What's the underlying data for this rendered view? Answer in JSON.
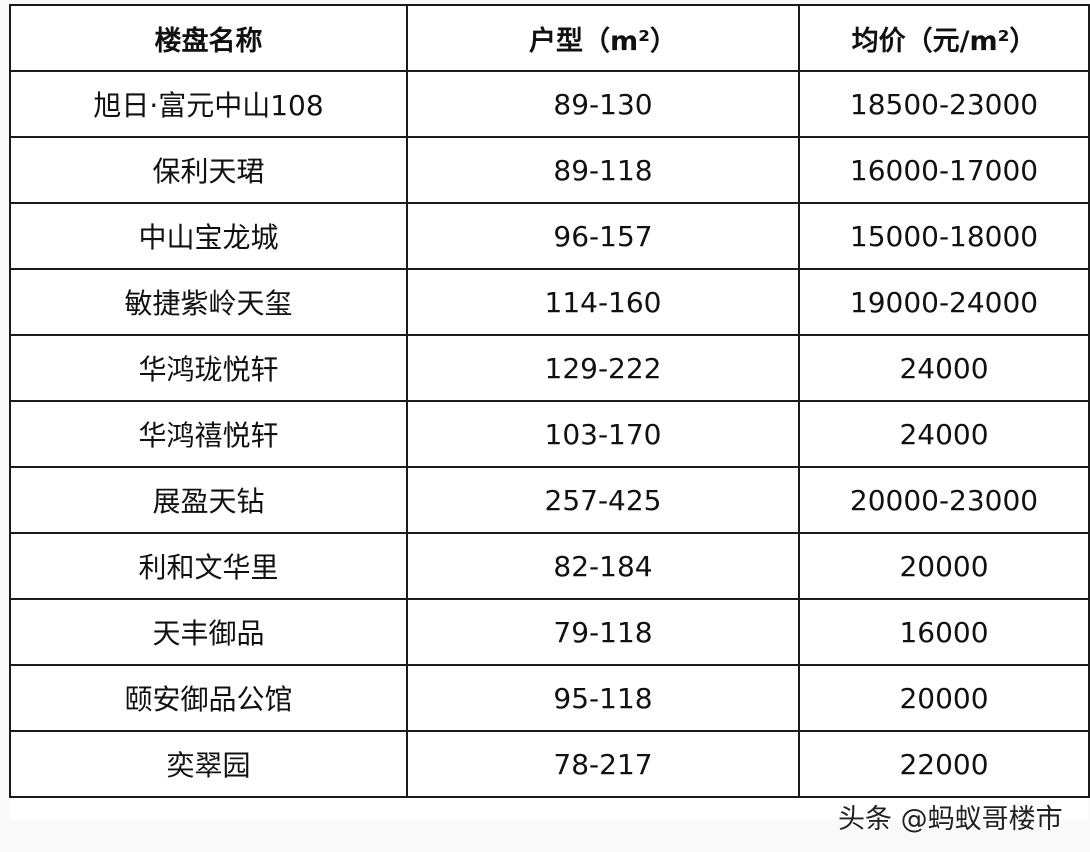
{
  "table": {
    "headers": [
      "楼盘名称",
      "户型（m²）",
      "均价（元/m²）"
    ],
    "rows": [
      [
        "旭日·富元中山108",
        "89-130",
        "18500-23000"
      ],
      [
        "保利天珺",
        "89-118",
        "16000-17000"
      ],
      [
        "中山宝龙城",
        "96-157",
        "15000-18000"
      ],
      [
        "敏捷紫岭天玺",
        "114-160",
        "19000-24000"
      ],
      [
        "华鸿珑悦轩",
        "129-222",
        "24000"
      ],
      [
        "华鸿禧悦轩",
        "103-170",
        "24000"
      ],
      [
        "展盈天钻",
        "257-425",
        "20000-23000"
      ],
      [
        "利和文华里",
        "82-184",
        "20000"
      ],
      [
        "天丰御品",
        "79-118",
        "16000"
      ],
      [
        "颐安御品公馆",
        "95-118",
        "20000"
      ],
      [
        "奕翠园",
        "78-217",
        "22000"
      ]
    ]
  },
  "watermark": "头条 @蚂蚁哥楼市"
}
